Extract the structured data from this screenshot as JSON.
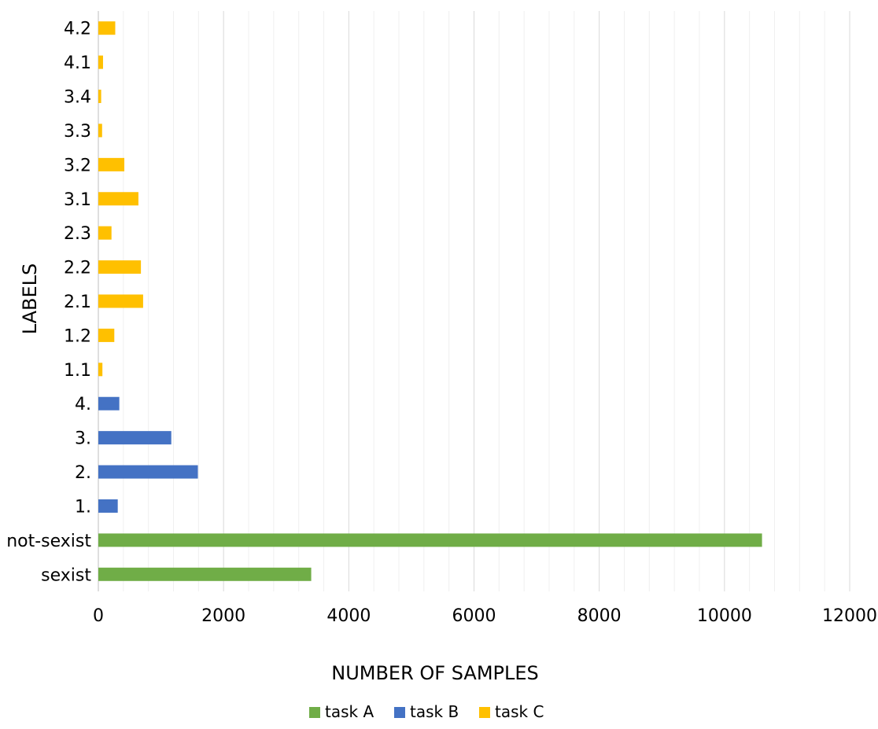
{
  "chart_data": {
    "type": "bar",
    "orientation": "horizontal",
    "title": "",
    "xlabel": "NUMBER OF SAMPLES",
    "ylabel": "LABELS",
    "xlim": [
      0,
      12000
    ],
    "x_ticks": [
      "0",
      "2000",
      "4000",
      "6000",
      "8000",
      "10000",
      "12000"
    ],
    "grid": true,
    "legend_position": "bottom",
    "categories": [
      "4.2",
      "4.1",
      "3.4",
      "3.3",
      "3.2",
      "3.1",
      "2.3",
      "2.2",
      "2.1",
      "1.2",
      "1.1",
      "4.",
      "3.",
      "2.",
      "1.",
      "not-sexist",
      "sexist"
    ],
    "bars": [
      {
        "category": "4.2",
        "series": "task C",
        "value": 270
      },
      {
        "category": "4.1",
        "series": "task C",
        "value": 75
      },
      {
        "category": "3.4",
        "series": "task C",
        "value": 45
      },
      {
        "category": "3.3",
        "series": "task C",
        "value": 60
      },
      {
        "category": "3.2",
        "series": "task C",
        "value": 415
      },
      {
        "category": "3.1",
        "series": "task C",
        "value": 640
      },
      {
        "category": "2.3",
        "series": "task C",
        "value": 210
      },
      {
        "category": "2.2",
        "series": "task C",
        "value": 680
      },
      {
        "category": "2.1",
        "series": "task C",
        "value": 715
      },
      {
        "category": "1.2",
        "series": "task C",
        "value": 255
      },
      {
        "category": "1.1",
        "series": "task C",
        "value": 65
      },
      {
        "category": "4.",
        "series": "task B",
        "value": 335
      },
      {
        "category": "3.",
        "series": "task B",
        "value": 1165
      },
      {
        "category": "2.",
        "series": "task B",
        "value": 1590
      },
      {
        "category": "1.",
        "series": "task B",
        "value": 310
      },
      {
        "category": "not-sexist",
        "series": "task A",
        "value": 10600
      },
      {
        "category": "sexist",
        "series": "task A",
        "value": 3400
      }
    ],
    "legend": [
      {
        "name": "task A",
        "color": "#70AD47"
      },
      {
        "name": "task B",
        "color": "#4472C4"
      },
      {
        "name": "task C",
        "color": "#FFC000"
      }
    ]
  }
}
